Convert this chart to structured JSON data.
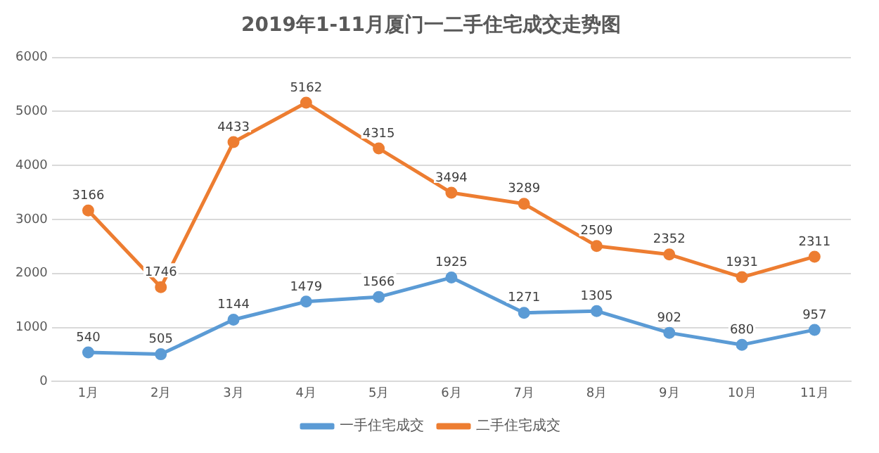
{
  "chart_data": {
    "type": "line",
    "title": "2019年1-11月厦门一二手住宅成交走势图",
    "categories": [
      "1月",
      "2月",
      "3月",
      "4月",
      "5月",
      "6月",
      "7月",
      "8月",
      "9月",
      "10月",
      "11月"
    ],
    "series": [
      {
        "name": "一手住宅成交",
        "color": "#5b9bd5",
        "values": [
          540,
          505,
          1144,
          1479,
          1566,
          1925,
          1271,
          1305,
          902,
          680,
          957
        ]
      },
      {
        "name": "二手住宅成交",
        "color": "#ed7d31",
        "values": [
          3166,
          1746,
          4433,
          5162,
          4315,
          3494,
          3289,
          2509,
          2352,
          1931,
          2311
        ]
      }
    ],
    "ylim": [
      0,
      6000
    ],
    "yticks": [
      0,
      1000,
      2000,
      3000,
      4000,
      5000,
      6000
    ],
    "grid": "y",
    "legend": "bottom",
    "marker": "circle",
    "line_style": "solid",
    "data_labels": true
  }
}
